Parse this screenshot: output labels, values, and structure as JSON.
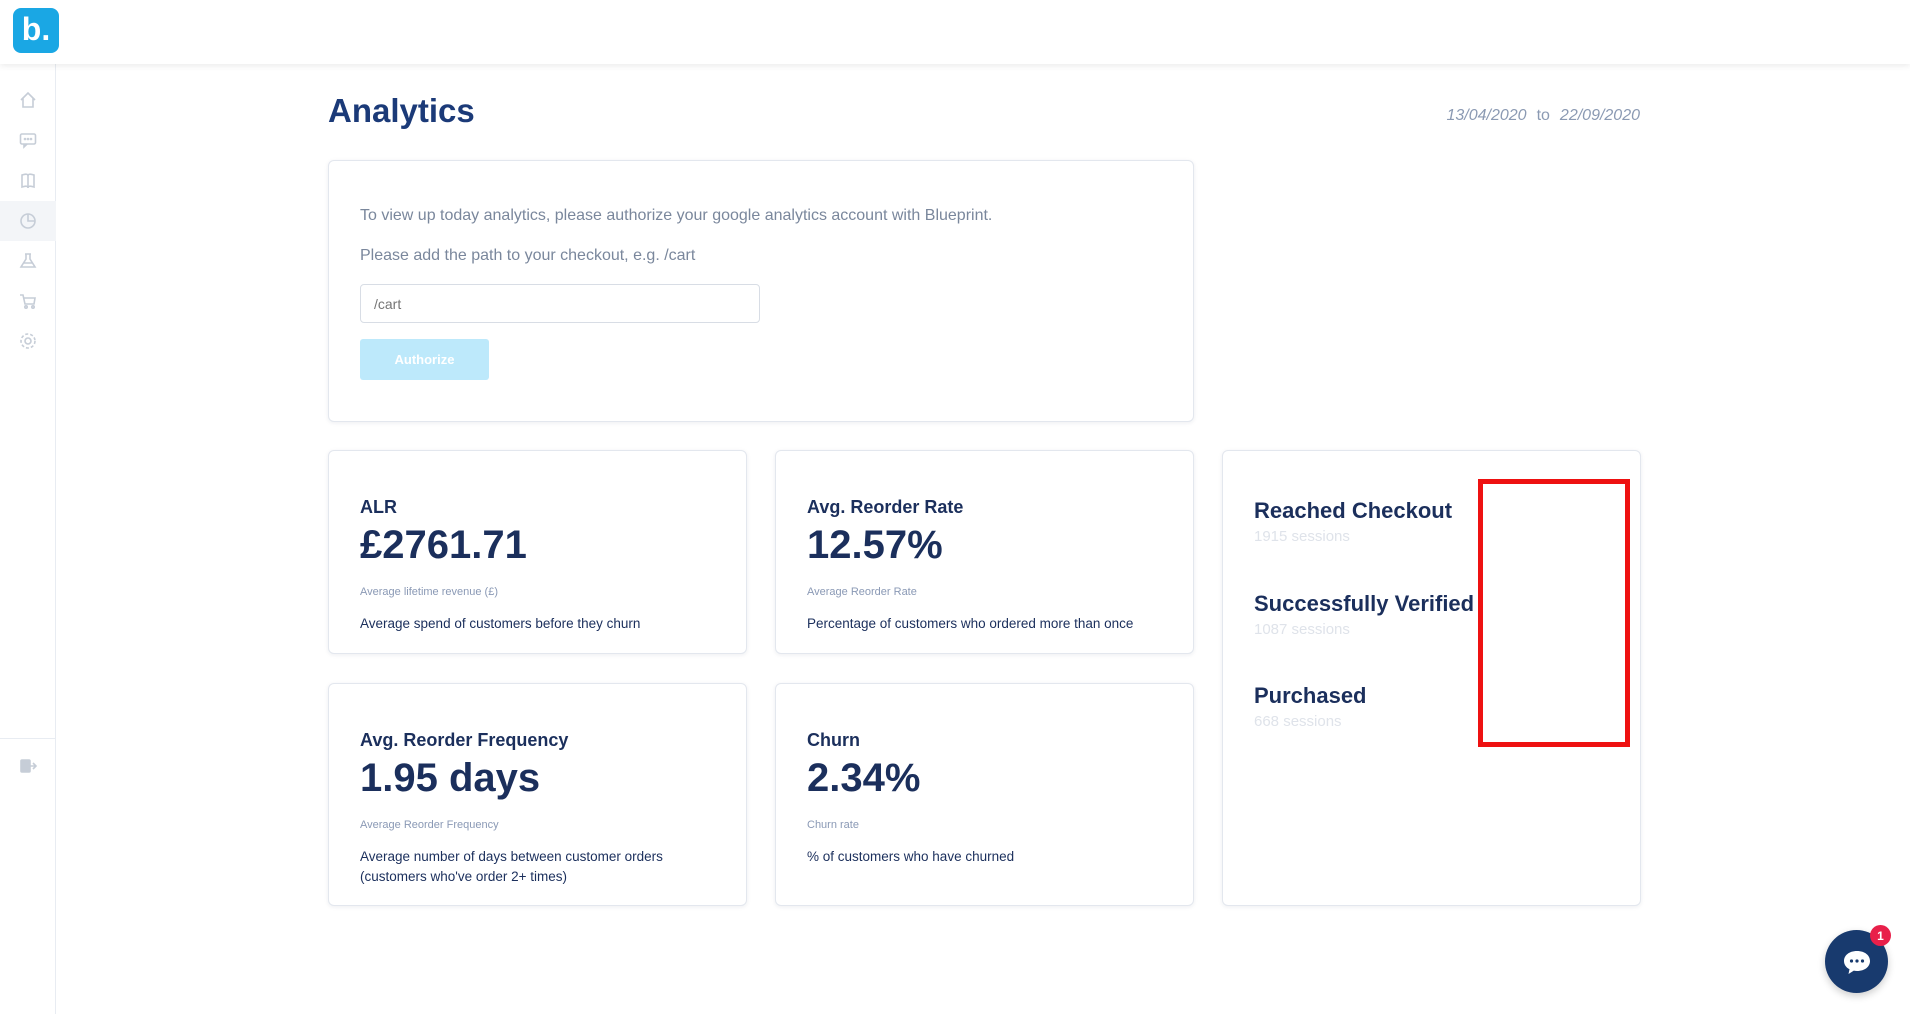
{
  "brand": {
    "logo_text": "b.",
    "color": "#1aa7e4"
  },
  "page": {
    "title": "Analytics"
  },
  "date_range": {
    "start": "13/04/2020",
    "to_label": "to",
    "end": "22/09/2020"
  },
  "auth": {
    "line1": "To view up today analytics, please authorize your google analytics account with Blueprint.",
    "line2": "Please add the path to your checkout, e.g. /cart",
    "input_placeholder": "/cart",
    "button_label": "Authorize"
  },
  "metrics": [
    {
      "title": "ALR",
      "value": "£2761.71",
      "sub": "Average lifetime revenue (£)",
      "desc": "Average spend of customers before they churn"
    },
    {
      "title": "Avg. Reorder Rate",
      "value": "12.57%",
      "sub": "Average Reorder Rate",
      "desc": "Percentage of customers who ordered more than once"
    },
    {
      "title": "Avg. Reorder Frequency",
      "value": "1.95 days",
      "sub": "Average Reorder Frequency",
      "desc": "Average number of days between customer orders (customers who've order 2+ times)"
    },
    {
      "title": "Churn",
      "value": "2.34%",
      "sub": "Churn rate",
      "desc": "% of customers who have churned"
    }
  ],
  "funnel": [
    {
      "label": "Reached Checkout",
      "sessions": "1915 sessions"
    },
    {
      "label": "Successfully Verified",
      "sessions": "1087 sessions"
    },
    {
      "label": "Purchased",
      "sessions": "668 sessions"
    }
  ],
  "sidebar_icons": [
    "home-icon",
    "messages-icon",
    "book-icon",
    "analytics-icon",
    "lab-icon",
    "cart-icon",
    "settings-icon",
    "logout-icon"
  ],
  "chat": {
    "badge_count": "1"
  }
}
